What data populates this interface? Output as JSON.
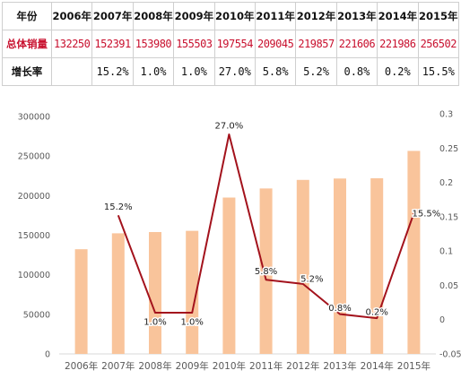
{
  "table": {
    "header_label": "年份",
    "sales_label": "总体销量",
    "growth_label": "增长率",
    "years": [
      "2006年",
      "2007年",
      "2008年",
      "2009年",
      "2010年",
      "2011年",
      "2012年",
      "2013年",
      "2014年",
      "2015年"
    ],
    "sales": [
      "132250",
      "152391",
      "153980",
      "155503",
      "197554",
      "209045",
      "219857",
      "221606",
      "221986",
      "256502"
    ],
    "growth": [
      "",
      "15.2%",
      "1.0%",
      "1.0%",
      "27.0%",
      "5.8%",
      "5.2%",
      "0.8%",
      "0.2%",
      "15.5%"
    ]
  },
  "chart_data": {
    "type": "bar+line",
    "categories": [
      "2006年",
      "2007年",
      "2008年",
      "2009年",
      "2010年",
      "2011年",
      "2012年",
      "2013年",
      "2014年",
      "2015年"
    ],
    "bar_series": {
      "values": [
        132250,
        152391,
        153980,
        155503,
        197554,
        209045,
        219857,
        221606,
        221986,
        256502
      ]
    },
    "line_series": {
      "values": [
        null,
        0.152,
        0.01,
        0.01,
        0.27,
        0.058,
        0.052,
        0.008,
        0.002,
        0.155
      ]
    },
    "line_labels": [
      "",
      "15.2%",
      "1.0%",
      "1.0%",
      "27.0%",
      "5.8%",
      "5.2%",
      "0.8%",
      "0.2%",
      "15.5%"
    ],
    "y_left": {
      "min": 0,
      "max": 300000,
      "step": 50000,
      "ticks": [
        "0",
        "50000",
        "100000",
        "150000",
        "200000",
        "250000",
        "300000"
      ]
    },
    "y_right": {
      "min": -0.05,
      "max": 0.3,
      "step": 0.05,
      "ticks": [
        "-0.05",
        "0",
        "0.05",
        "0.1",
        "0.15",
        "0.2",
        "0.25",
        "0.3"
      ]
    },
    "colors": {
      "bar": "#f9c49b",
      "line": "#a3121c",
      "text": "#595959",
      "axis": "#d9d9d9"
    },
    "grid": false
  }
}
